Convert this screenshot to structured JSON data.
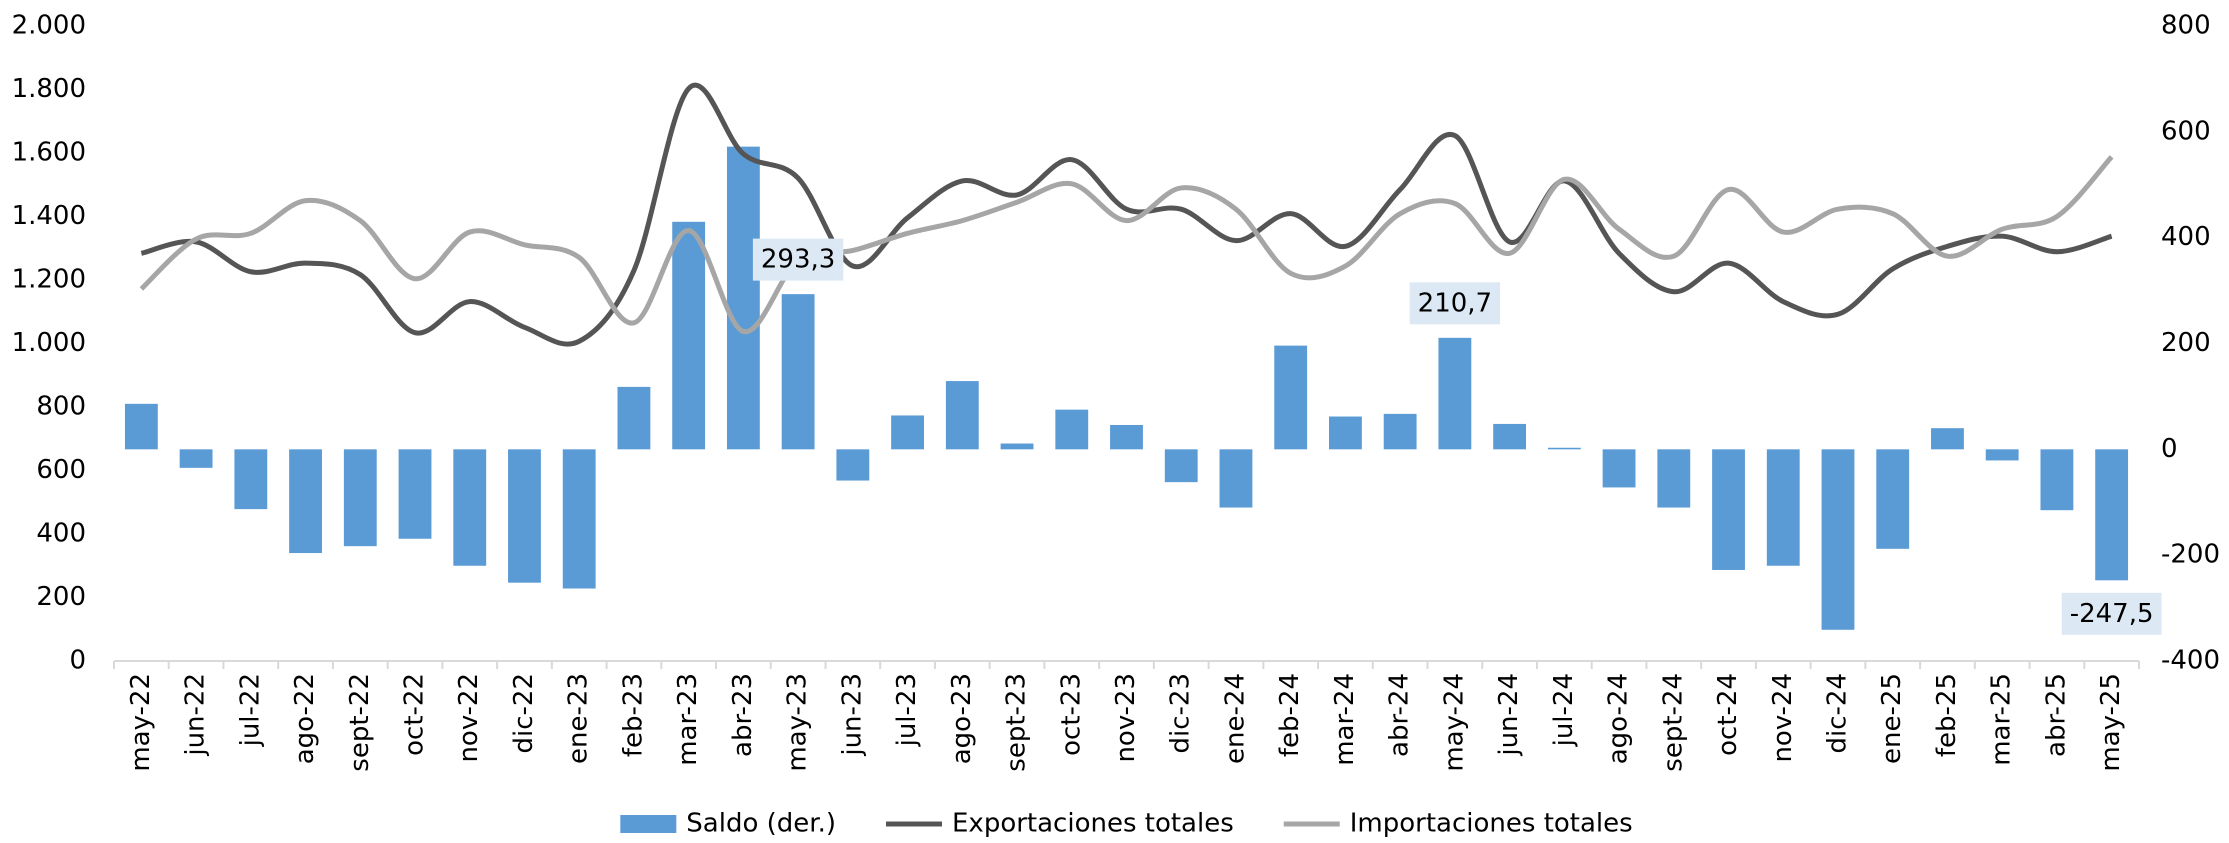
{
  "chart_data": {
    "type": "bar-line",
    "categories": [
      "may-22",
      "jun-22",
      "jul-22",
      "ago-22",
      "sept-22",
      "oct-22",
      "nov-22",
      "dic-22",
      "ene-23",
      "feb-23",
      "mar-23",
      "abr-23",
      "may-23",
      "jun-23",
      "jul-23",
      "ago-23",
      "sept-23",
      "oct-23",
      "nov-23",
      "dic-23",
      "ene-24",
      "feb-24",
      "mar-24",
      "abr-24",
      "may-24",
      "jun-24",
      "jul-24",
      "ago-24",
      "sept-24",
      "oct-24",
      "nov-24",
      "dic-24",
      "ene-25",
      "feb-25",
      "mar-25",
      "abr-25",
      "may-25"
    ],
    "series": [
      {
        "name": "Saldo (der.)",
        "type": "bar",
        "axis": "y2",
        "color": "#5b9bd5",
        "values": [
          86,
          -35,
          -113,
          -196,
          -183,
          -169,
          -220,
          -252,
          -263,
          118,
          430,
          572,
          293.3,
          -59,
          64,
          129,
          11,
          75,
          46,
          -62,
          -110,
          196,
          62,
          67,
          210.7,
          48,
          3,
          -72,
          -110,
          -228,
          -220,
          -341,
          -188,
          40,
          -21,
          -115,
          -247.5
        ],
        "value_labels": [
          null,
          null,
          null,
          null,
          null,
          null,
          null,
          null,
          null,
          null,
          null,
          null,
          "293,3",
          null,
          null,
          null,
          null,
          null,
          null,
          null,
          null,
          null,
          null,
          null,
          "210,7",
          null,
          null,
          null,
          null,
          null,
          null,
          null,
          null,
          null,
          null,
          null,
          "-247,5"
        ]
      },
      {
        "name": "Exportaciones totales",
        "type": "line",
        "color": "#555555",
        "values": [
          1284,
          1320,
          1226,
          1253,
          1217,
          1034,
          1132,
          1051,
          1007,
          1230,
          1803,
          1597,
          1521,
          1244,
          1396,
          1512,
          1468,
          1579,
          1423,
          1423,
          1324,
          1409,
          1306,
          1485,
          1655,
          1320,
          1512,
          1284,
          1163,
          1253,
          1132,
          1092,
          1235,
          1306,
          1338,
          1289,
          1338
        ]
      },
      {
        "name": "Importaciones totales",
        "type": "line",
        "color": "#a6a6a6",
        "values": [
          1172,
          1329,
          1347,
          1450,
          1387,
          1204,
          1351,
          1311,
          1271,
          1065,
          1356,
          1038,
          1262,
          1293,
          1347,
          1387,
          1445,
          1503,
          1387,
          1490,
          1423,
          1221,
          1244,
          1409,
          1441,
          1284,
          1517,
          1360,
          1275,
          1485,
          1351,
          1423,
          1409,
          1275,
          1360,
          1400,
          1588
        ]
      }
    ],
    "ylim": [
      0,
      2000
    ],
    "yticks": [
      0,
      200,
      400,
      600,
      800,
      {
        "value": 1000,
        "label": "1.000"
      },
      {
        "value": 1200,
        "label": "1.200"
      },
      {
        "value": 1400,
        "label": "1.400"
      },
      {
        "value": 1600,
        "label": "1.600"
      },
      {
        "value": 1800,
        "label": "1.800"
      },
      {
        "value": 2000,
        "label": "2.000"
      }
    ],
    "y2lim": [
      -400,
      800
    ],
    "y2ticks": [
      -400,
      -200,
      0,
      200,
      400,
      600,
      800
    ],
    "legend": "bottom",
    "label_background": "#dce9f5"
  }
}
